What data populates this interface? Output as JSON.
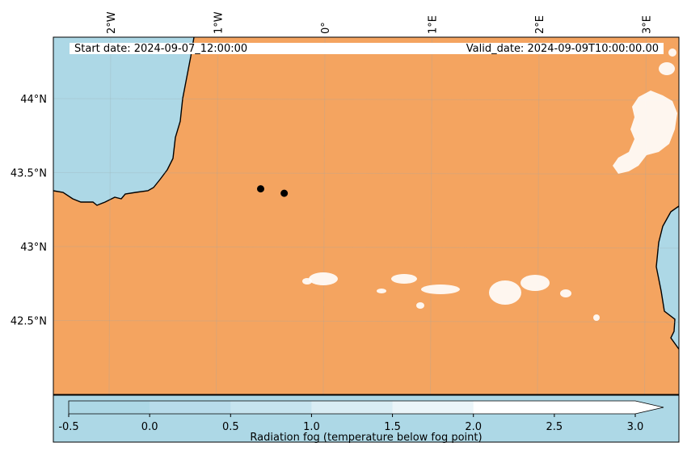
{
  "header": {
    "start_date": "Start date: 2024-09-07_12:00:00",
    "valid_date": "Valid_date: 2024-09-09T10:00:00.00"
  },
  "map": {
    "colors": {
      "land": "#f4a460",
      "sea": "#add8e6",
      "fog": "#ffffff",
      "coast": "#000000"
    },
    "lon_ticks": [
      "2°W",
      "1°W",
      "0°",
      "1°E",
      "2°E",
      "3°E"
    ],
    "lat_ticks": [
      "44°N",
      "43.5°N",
      "43°N",
      "42.5°N"
    ],
    "stations": [
      {
        "lon": -0.6,
        "lat": 43.39
      },
      {
        "lon": -0.38,
        "lat": 43.36
      }
    ]
  },
  "colorbar": {
    "label": "Radiation fog (temperature below fog point)",
    "ticks": [
      "-0.5",
      "0.0",
      "0.5",
      "1.0",
      "1.5",
      "2.0",
      "2.5",
      "3.0"
    ],
    "segment_colors": [
      "#add8e6",
      "#b8dceb",
      "#c6e4ef",
      "#d9edf4",
      "#ebf5f9",
      "#ffffff",
      "#ffffff"
    ]
  }
}
